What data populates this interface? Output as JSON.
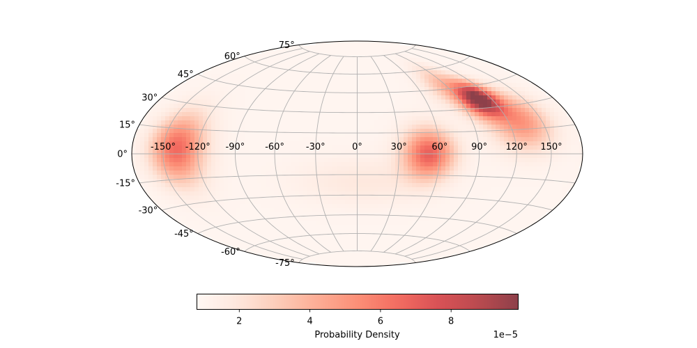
{
  "chart_data": {
    "type": "heatmap",
    "projection": "hammer",
    "title": "",
    "colormap": "Reds",
    "colormap_alpha": 0.75,
    "grid": true,
    "grid_color": "#b0b0b0",
    "x_ticks": [
      -150,
      -120,
      -90,
      -60,
      -30,
      0,
      30,
      60,
      90,
      120,
      150
    ],
    "x_tick_labels": [
      "-150°",
      "-120°",
      "-90°",
      "-60°",
      "-30°",
      "0°",
      "30°",
      "60°",
      "90°",
      "120°",
      "150°"
    ],
    "y_ticks": [
      -75,
      -60,
      -45,
      -30,
      -15,
      0,
      15,
      30,
      45,
      60,
      75
    ],
    "y_tick_labels": [
      "-75°",
      "-60°",
      "-45°",
      "-30°",
      "-15°",
      "0°",
      "15°",
      "30°",
      "45°",
      "60°",
      "75°"
    ],
    "xlim": [
      -180,
      180
    ],
    "ylim": [
      -90,
      90
    ],
    "background_density": 1e-05,
    "hotspots": [
      {
        "lon": 108,
        "lat": 36,
        "peak": 9.9e-05,
        "sigma_lon": 12,
        "sigma_lat": 8
      },
      {
        "lon": 130,
        "lat": 20,
        "peak": 5.2e-05,
        "sigma_lon": 18,
        "sigma_lat": 12
      },
      {
        "lon": 88,
        "lat": 48,
        "peak": 3.6e-05,
        "sigma_lon": 14,
        "sigma_lat": 10
      },
      {
        "lon": -138,
        "lat": 3,
        "peak": 6.6e-05,
        "sigma_lon": 16,
        "sigma_lat": 14
      },
      {
        "lon": 52,
        "lat": 0,
        "peak": 6.9e-05,
        "sigma_lon": 13,
        "sigma_lat": 12
      },
      {
        "lon": 5,
        "lat": -20,
        "peak": 1.9e-05,
        "sigma_lon": 35,
        "sigma_lat": 12
      }
    ],
    "colorbar": {
      "label": "Probability Density",
      "orientation": "horizontal",
      "vmin": 8e-06,
      "vmax": 9.9e-05,
      "ticks": [
        2e-05,
        4e-05,
        6e-05,
        8e-05
      ],
      "tick_labels": [
        "2",
        "4",
        "6",
        "8"
      ],
      "offset_text": "1e−5"
    }
  }
}
